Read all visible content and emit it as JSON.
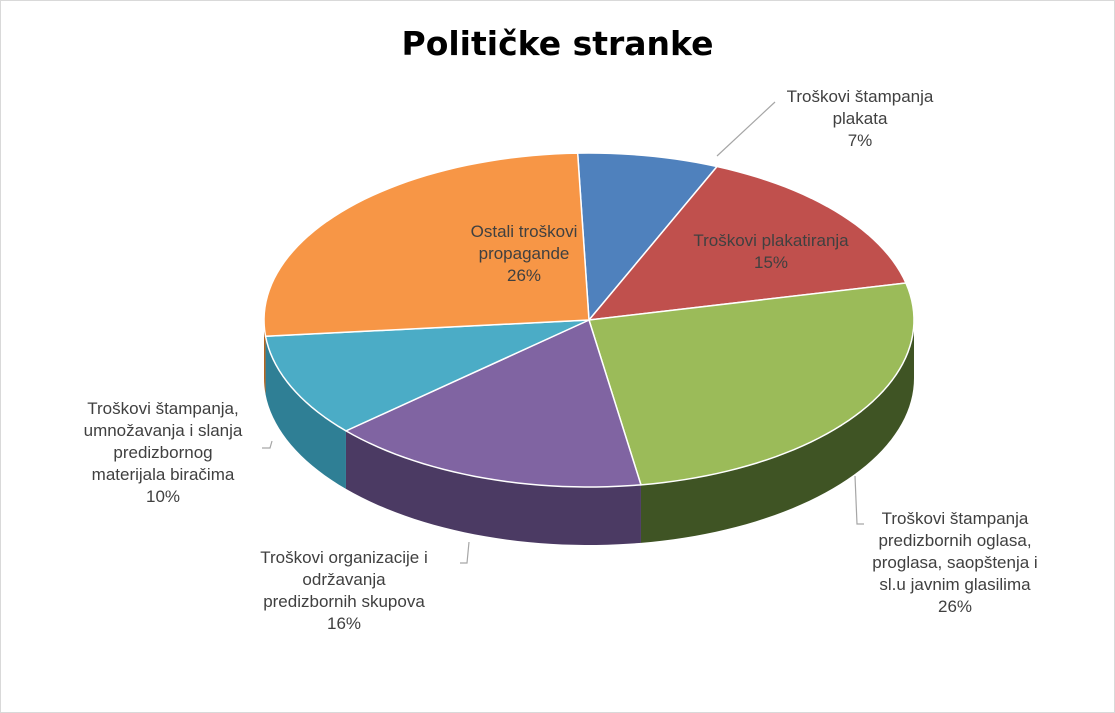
{
  "chart_data": {
    "type": "pie",
    "title": "Političke stranke",
    "slices": [
      {
        "id": "plakati",
        "label_lines": [
          "Troškovi štampanja",
          "plakata"
        ],
        "percent_label": "7%",
        "value": 7,
        "color": "#4F81BD",
        "side_color": "#2E4A73",
        "label_position": "outside"
      },
      {
        "id": "plakatiranje",
        "label_lines": [
          "Troškovi plakatiranja"
        ],
        "percent_label": "15%",
        "value": 15,
        "color": "#C0504D",
        "side_color": "#7A2F2D",
        "label_position": "inside"
      },
      {
        "id": "oglasi",
        "label_lines": [
          "Troškovi štampanja",
          "predizbornih oglasa,",
          "proglasa, saopštenja i",
          "sl.u javnim glasilima"
        ],
        "percent_label": "26%",
        "value": 26,
        "color": "#9BBB59",
        "side_color": "#3F5424",
        "label_position": "outside"
      },
      {
        "id": "skupovi",
        "label_lines": [
          "Troškovi organizacije i",
          "održavanja",
          "predizbornih skupova"
        ],
        "percent_label": "16%",
        "value": 16,
        "color": "#8064A2",
        "side_color": "#4B3A63",
        "label_position": "outside"
      },
      {
        "id": "materijal",
        "label_lines": [
          "Troškovi štampanja,",
          "umnožavanja i slanja",
          "predizbornog",
          "materijala biračima"
        ],
        "percent_label": "10%",
        "value": 10,
        "color": "#4BACC6",
        "side_color": "#2F7F95",
        "label_position": "outside"
      },
      {
        "id": "ostali",
        "label_lines": [
          "Ostali troškovi",
          "propagande"
        ],
        "percent_label": "26%",
        "value": 26,
        "color": "#F79646",
        "side_color": "#B36420",
        "label_position": "inside"
      }
    ],
    "legend": "none",
    "style": "3d-pie"
  }
}
